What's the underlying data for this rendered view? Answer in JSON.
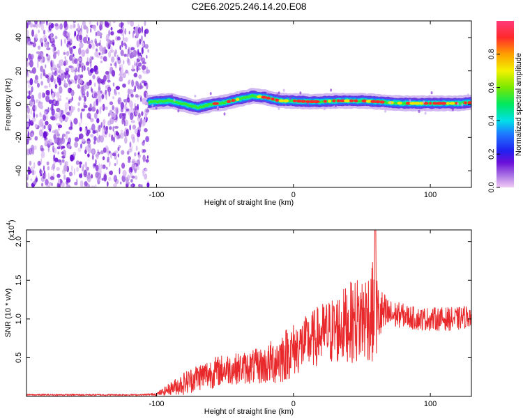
{
  "figure_title": "C2E6.2025.246.14.20.E08",
  "colors": {
    "snr_line": "#e8282a",
    "axis": "#000000",
    "background": "#ffffff"
  },
  "chart_data": [
    {
      "id": "spectrogram",
      "type": "heatmap",
      "xlabel": "Height of straight line (km)",
      "ylabel": "Frequency (Hz)",
      "xlim": [
        -195,
        130
      ],
      "ylim": [
        -50,
        50
      ],
      "xticks": [
        -100,
        0,
        100
      ],
      "yticks": [
        -40,
        -20,
        0,
        20,
        40
      ],
      "colorbar": {
        "label": "Normalized spectral amplitude",
        "range": [
          0.0,
          1.0
        ],
        "ticks": [
          0.0,
          0.2,
          0.4,
          0.6,
          0.8
        ],
        "tick_labels": [
          "0.0",
          "0.2",
          "0.4",
          "0.6",
          "0.8"
        ]
      },
      "noise_region_x": [
        -195,
        -106
      ],
      "signal_trace": {
        "x": [
          -106,
          -100,
          -90,
          -80,
          -70,
          -60,
          -50,
          -40,
          -30,
          -20,
          -10,
          0,
          10,
          20,
          30,
          40,
          50,
          60,
          70,
          80,
          90,
          100,
          110,
          120,
          130
        ],
        "y": [
          1,
          1.5,
          2,
          0,
          -2,
          0,
          1,
          3,
          5,
          4,
          2,
          2,
          1.5,
          1.5,
          2,
          2,
          2,
          1.5,
          1,
          0.5,
          0.5,
          0.5,
          0.5,
          0.5,
          1
        ]
      }
    },
    {
      "id": "snr",
      "type": "line",
      "xlabel": "Height of straight line (km)",
      "ylabel": "SNR (10 * v/v)",
      "scale_label": "(x10",
      "scale_exponent": "4",
      "xlim": [
        -195,
        130
      ],
      "ylim": [
        0,
        2.15
      ],
      "xticks": [
        -100,
        0,
        100
      ],
      "yticks": [
        0.5,
        1.0,
        1.5,
        2.0
      ],
      "ytick_labels": [
        "0.5",
        "1.0",
        "1.5",
        "2.0"
      ],
      "envelope": {
        "x": [
          -195,
          -110,
          -100,
          -95,
          -90,
          -80,
          -70,
          -60,
          -50,
          -40,
          -30,
          -20,
          -15,
          -10,
          -5,
          0,
          10,
          20,
          30,
          40,
          50,
          55,
          60,
          62,
          70,
          80,
          90,
          100,
          110,
          120,
          130
        ],
        "mean": [
          0.02,
          0.02,
          0.03,
          0.06,
          0.1,
          0.17,
          0.25,
          0.3,
          0.35,
          0.36,
          0.38,
          0.4,
          0.45,
          0.5,
          0.55,
          0.6,
          0.7,
          0.8,
          0.85,
          0.95,
          1.0,
          1.05,
          1.1,
          1.05,
          1.05,
          1.05,
          1.0,
          1.0,
          1.0,
          1.0,
          1.05
        ],
        "amp": [
          0.01,
          0.01,
          0.02,
          0.05,
          0.08,
          0.15,
          0.18,
          0.2,
          0.2,
          0.2,
          0.22,
          0.25,
          0.3,
          0.35,
          0.35,
          0.35,
          0.35,
          0.4,
          0.45,
          0.5,
          0.6,
          0.6,
          0.7,
          0.4,
          0.2,
          0.15,
          0.15,
          0.15,
          0.15,
          0.15,
          0.15
        ]
      }
    }
  ]
}
